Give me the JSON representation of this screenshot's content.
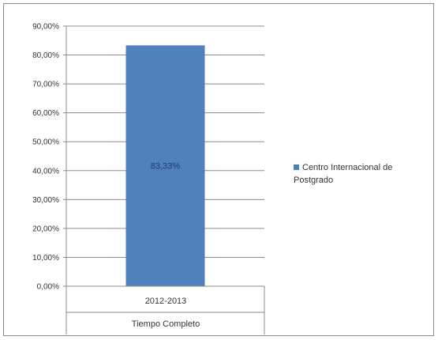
{
  "chart_data": {
    "type": "bar",
    "title": "",
    "xlabel": "",
    "ylabel": "",
    "categories": [
      [
        "2012-2013",
        "Tiempo Completo"
      ]
    ],
    "series": [
      {
        "name": "Centro Internacional de Postgrado",
        "values": [
          83.33
        ],
        "value_labels": [
          "83,33%"
        ],
        "color": "#4f81bd"
      }
    ],
    "category_labels": {
      "level1": "2012-2013",
      "level2": "Tiempo Completo"
    },
    "legend": {
      "position": "right",
      "entries": [
        "Centro Internacional de",
        "Postgrado"
      ]
    },
    "y_ticks": [
      "0,00%",
      "10,00%",
      "20,00%",
      "30,00%",
      "40,00%",
      "50,00%",
      "60,00%",
      "70,00%",
      "80,00%",
      "90,00%"
    ],
    "ylim": [
      0,
      90
    ],
    "grid": true
  }
}
